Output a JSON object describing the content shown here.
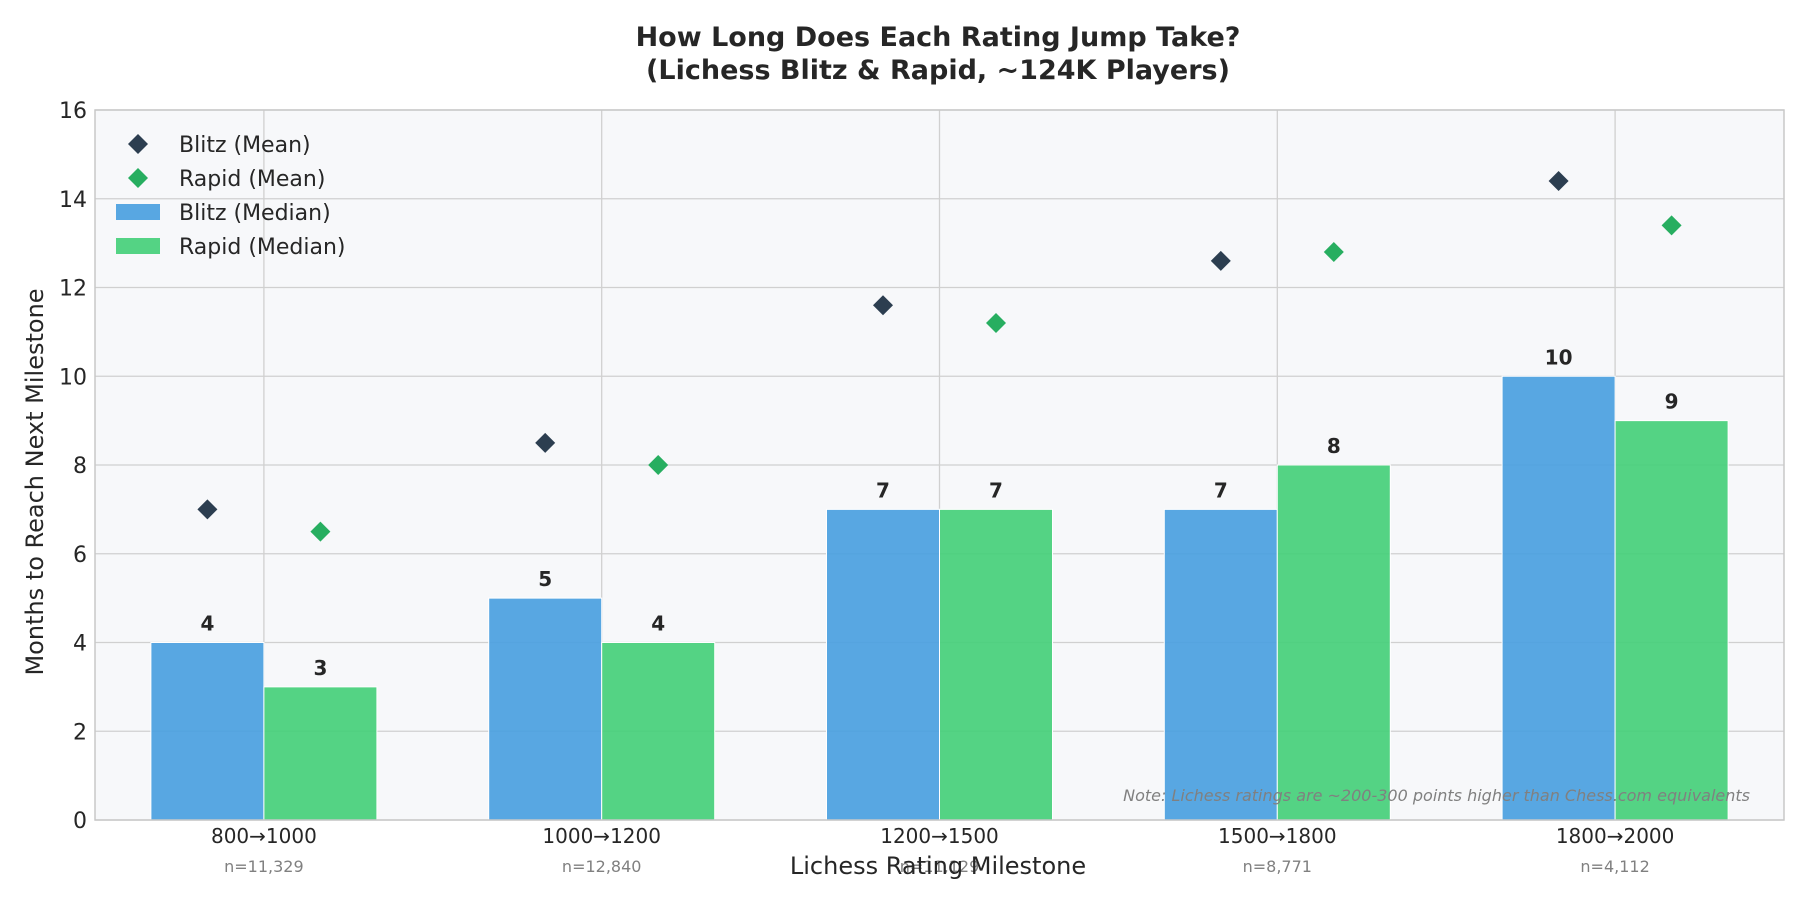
{
  "chart_data": {
    "type": "bar",
    "title_lines": [
      "How Long Does Each Rating Jump Take?",
      "(Lichess Blitz & Rapid, ~124K Players)"
    ],
    "xlabel": "Lichess Rating Milestone",
    "ylabel": "Months to Reach Next Milestone",
    "ylim": [
      0,
      16
    ],
    "yticks": [
      0,
      2,
      4,
      6,
      8,
      10,
      12,
      14,
      16
    ],
    "categories": [
      "800→1000",
      "1000→1200",
      "1200→1500",
      "1500→1800",
      "1800→2000"
    ],
    "sample_sizes": [
      "n=11,329",
      "n=12,840",
      "n=11,129",
      "n=8,771",
      "n=4,112"
    ],
    "series": [
      {
        "name": "Blitz (Median)",
        "kind": "bar",
        "color": "#4a9fdf",
        "values": [
          4,
          5,
          7,
          7,
          10
        ]
      },
      {
        "name": "Rapid (Median)",
        "kind": "bar",
        "color": "#45cf7a",
        "values": [
          3,
          4,
          7,
          8,
          9
        ]
      },
      {
        "name": "Blitz (Mean)",
        "kind": "scatter",
        "marker": "diamond",
        "color": "#2c3e50",
        "values": [
          7.0,
          8.5,
          11.6,
          12.6,
          14.4
        ]
      },
      {
        "name": "Rapid (Mean)",
        "kind": "scatter",
        "marker": "diamond",
        "color": "#27ae60",
        "values": [
          6.5,
          8.0,
          11.2,
          12.8,
          13.4
        ]
      }
    ],
    "legend": {
      "placement": "top-left",
      "order": [
        "Blitz (Mean)",
        "Rapid (Mean)",
        "Blitz (Median)",
        "Rapid (Median)"
      ]
    },
    "grid": true,
    "note": "Note: Lichess ratings are ~200-300 points higher than Chess.com equivalents",
    "background_color": "#f7f8fa",
    "grid_color": "#d0d0d0"
  }
}
